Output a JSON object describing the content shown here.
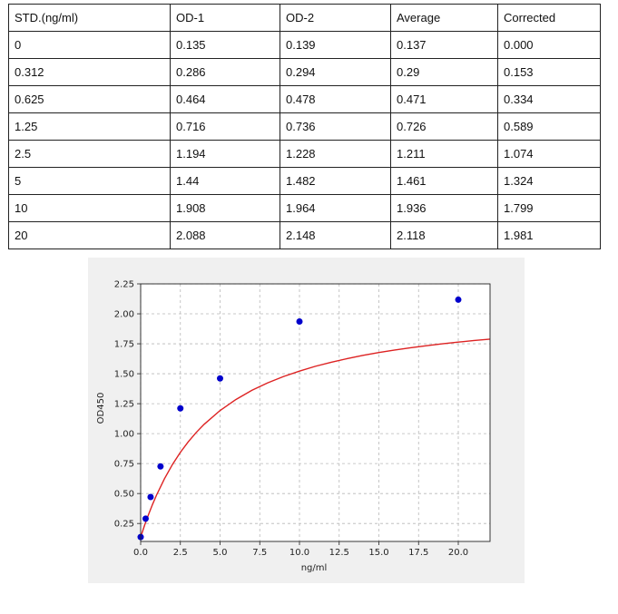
{
  "table": {
    "headers": [
      "STD.(ng/ml)",
      "OD-1",
      "OD-2",
      "Average",
      "Corrected"
    ],
    "rows": [
      [
        "0",
        "0.135",
        "0.139",
        "0.137",
        "0.000"
      ],
      [
        "0.312",
        "0.286",
        "0.294",
        "0.29",
        "0.153"
      ],
      [
        "0.625",
        "0.464",
        "0.478",
        "0.471",
        "0.334"
      ],
      [
        "1.25",
        "0.716",
        "0.736",
        "0.726",
        "0.589"
      ],
      [
        "2.5",
        "1.194",
        "1.228",
        "1.211",
        "1.074"
      ],
      [
        "5",
        "1.44",
        "1.482",
        "1.461",
        "1.324"
      ],
      [
        "10",
        "1.908",
        "1.964",
        "1.936",
        "1.799"
      ],
      [
        "20",
        "2.088",
        "2.148",
        "2.118",
        "1.981"
      ]
    ]
  },
  "chart_data": {
    "type": "scatter",
    "title": "",
    "xlabel": "ng/ml",
    "ylabel": "OD450",
    "xlim": [
      0,
      22
    ],
    "ylim": [
      0.1,
      2.25
    ],
    "xticks": [
      "0.0",
      "2.5",
      "5.0",
      "7.5",
      "10.0",
      "12.5",
      "15.0",
      "17.5",
      "20.0"
    ],
    "xtick_values": [
      0,
      2.5,
      5,
      7.5,
      10,
      12.5,
      15,
      17.5,
      20
    ],
    "yticks": [
      "0.25",
      "0.50",
      "0.75",
      "1.00",
      "1.25",
      "1.50",
      "1.75",
      "2.00",
      "2.25"
    ],
    "ytick_values": [
      0.25,
      0.5,
      0.75,
      1.0,
      1.25,
      1.5,
      1.75,
      2.0,
      2.25
    ],
    "grid": true,
    "series": [
      {
        "x": [
          0,
          0.312,
          0.625,
          1.25,
          2.5,
          5,
          10,
          20
        ],
        "y": [
          0.137,
          0.29,
          0.471,
          0.726,
          1.211,
          1.461,
          1.936,
          2.118
        ],
        "color": "#0000cc"
      }
    ],
    "fit_curve": {
      "color": "#dd2222",
      "x": [
        0,
        0.25,
        0.5,
        0.75,
        1,
        1.5,
        2,
        2.5,
        3,
        3.5,
        4,
        5,
        6,
        7,
        8,
        9,
        10,
        11,
        12,
        13,
        14,
        15,
        16,
        17,
        18,
        19,
        20,
        21,
        22
      ],
      "y": [
        0.137,
        0.236,
        0.326,
        0.41,
        0.487,
        0.624,
        0.742,
        0.844,
        0.932,
        1.01,
        1.078,
        1.193,
        1.285,
        1.361,
        1.424,
        1.477,
        1.522,
        1.562,
        1.596,
        1.626,
        1.653,
        1.677,
        1.698,
        1.717,
        1.734,
        1.75,
        1.764,
        1.777,
        1.789
      ]
    }
  }
}
